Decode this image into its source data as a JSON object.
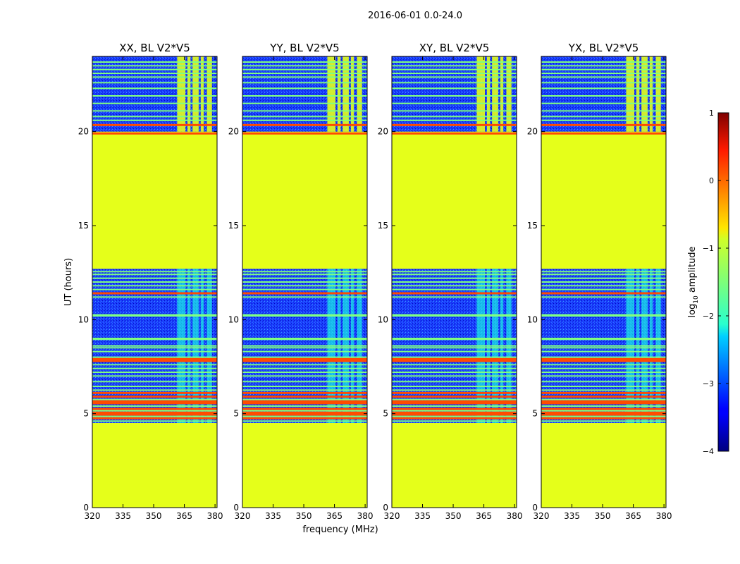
{
  "figure": {
    "suptitle": "2016-06-01 0.0-24.0",
    "xlabel": "frequency (MHz)",
    "ylabel": "UT (hours)"
  },
  "chart_data": {
    "type": "heatmap",
    "title": "2016-06-01 0.0-24.0",
    "xlabel": "frequency (MHz)",
    "ylabel": "UT (hours)",
    "xlim": [
      320,
      381
    ],
    "ylim": [
      0,
      24
    ],
    "xticks": [
      "320",
      "335",
      "350",
      "365",
      "380"
    ],
    "yticks": [
      "0",
      "5",
      "10",
      "15",
      "20"
    ],
    "panels": [
      {
        "title": "XX, BL V2*V5",
        "pol": "XX"
      },
      {
        "title": "YY, BL V2*V5",
        "pol": "YY"
      },
      {
        "title": "XY, BL V2*V5",
        "pol": "XY"
      },
      {
        "title": "YX, BL V2*V5",
        "pol": "YX"
      }
    ],
    "colorbar": {
      "label": "log10 amplitude",
      "label_prefix": "log",
      "label_sub": "10",
      "label_suffix": "amplitude",
      "range": [
        -4,
        1
      ],
      "ticks": [
        "1",
        "0",
        "−1",
        "−2",
        "−3",
        "−4"
      ],
      "colormap": "jet"
    },
    "flagged_fill_value": -1.0,
    "flagged_time_ranges_hours": [
      [
        0.0,
        4.5
      ],
      [
        12.7,
        20.0
      ]
    ],
    "data_time_ranges_hours": [
      [
        4.5,
        12.7
      ],
      [
        20.0,
        24.0
      ]
    ],
    "background_level": -3.0,
    "rfi_freq_bands_mhz": [
      [
        361.5,
        365.5
      ],
      [
        366.5,
        368.0
      ],
      [
        369.0,
        372.0
      ],
      [
        373.0,
        374.5
      ],
      [
        376.0,
        378.5
      ]
    ],
    "rfi_level_night": -2.0,
    "rfi_level_day": -1.0,
    "bright_time_lines_hours": [
      4.75,
      4.95,
      5.05,
      5.25,
      5.55,
      5.65,
      5.9,
      6.1,
      7.8,
      7.9,
      11.4,
      19.9,
      20.35
    ],
    "bright_line_level": 0.0,
    "horizontal_stripe_hours": [
      4.6,
      4.85,
      5.15,
      5.4,
      5.75,
      6.25,
      6.45,
      6.7,
      7.0,
      7.2,
      7.4,
      7.6,
      8.0,
      8.3,
      8.5,
      8.6,
      8.95,
      9.0,
      10.2,
      10.25,
      11.2,
      11.6,
      11.8,
      12.0,
      12.2,
      12.4,
      12.55,
      20.6,
      20.8,
      21.1,
      21.5,
      21.9,
      22.3,
      22.6,
      22.9,
      23.1,
      23.3,
      23.5,
      23.7
    ],
    "stripe_level": -1.5
  }
}
